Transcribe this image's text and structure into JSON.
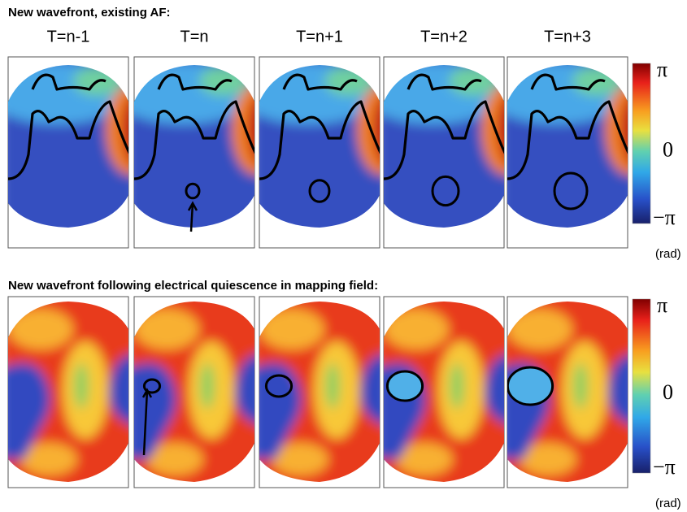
{
  "panels": [
    {
      "title": "New wavefront, existing AF:",
      "columns": [
        "T=n-1",
        "T=n",
        "T=n+1",
        "T=n+2",
        "T=n+3"
      ],
      "colorbar": {
        "max": "π",
        "mid": "0",
        "min": "−π",
        "unit": "(rad)"
      }
    },
    {
      "title": "New wavefront following electrical quiescence in mapping field:",
      "colorbar": {
        "max": "π",
        "mid": "0",
        "min": "−π",
        "unit": "(rad)"
      }
    }
  ]
}
